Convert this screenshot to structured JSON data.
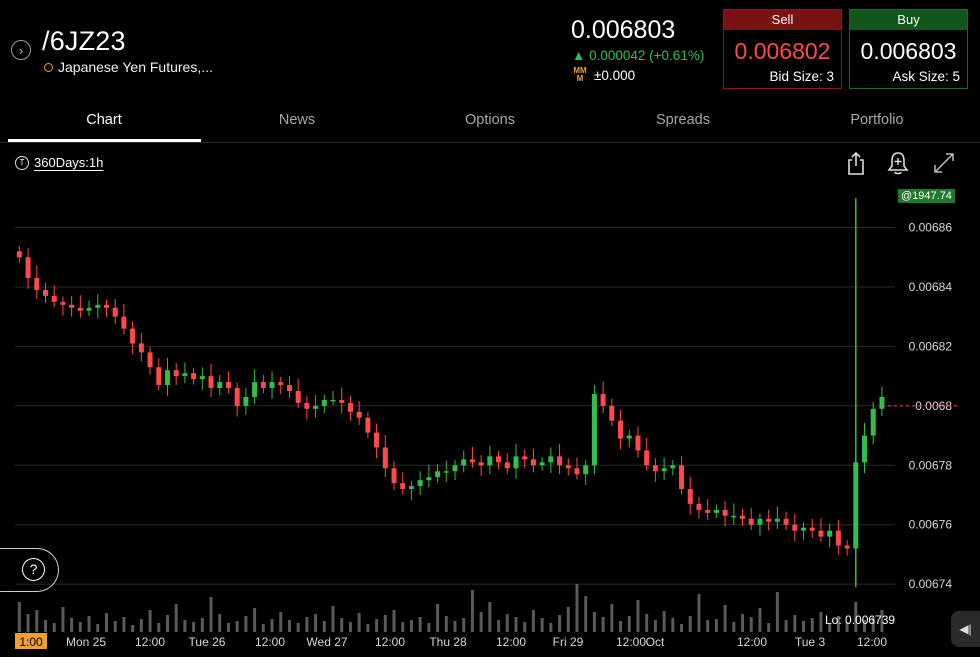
{
  "header": {
    "symbol": "/6JZ23",
    "description": "Japanese Yen Futures,...",
    "last_price": "0.006803",
    "change": "▲ 0.000042 (+0.61%)",
    "mm_value": "±0.000",
    "sell": {
      "label": "Sell",
      "price": "0.006802",
      "size": "Bid Size: 3"
    },
    "buy": {
      "label": "Buy",
      "price": "0.006803",
      "size": "Ask Size: 5"
    }
  },
  "tabs": [
    {
      "label": "Chart"
    },
    {
      "label": "News"
    },
    {
      "label": "Options"
    },
    {
      "label": "Spreads"
    },
    {
      "label": "Portfolio"
    }
  ],
  "toolbar": {
    "range_label": "360Days:1h",
    "icons": [
      "share-icon",
      "alert-bell-icon",
      "expand-icon"
    ]
  },
  "price_tag": "@1947.74",
  "lo_label": "Lo: 0.006739",
  "colors": {
    "up": "#2fbf4a",
    "down": "#ff4a4a",
    "grid": "#2c2c2c",
    "accent": "#f0a030"
  },
  "chart_data": {
    "type": "candlestick",
    "y_ticks": [
      "0.00686",
      "0.00684",
      "0.00682",
      "0.0068",
      "0.00678",
      "0.00676",
      "0.00674"
    ],
    "ylim": [
      0.006734,
      0.006876
    ],
    "x_ticks": [
      "1:00",
      "Mon 25",
      "12:00",
      "Tue 26",
      "12:00",
      "Wed 27",
      "12:00",
      "Thu 28",
      "12:00",
      "Fri 29",
      "12:00",
      "Oct",
      "12:00",
      "Tue 3",
      "12:00"
    ],
    "current_price": 0.0068,
    "close_path": [
      0.00685,
      0.006843,
      0.006839,
      0.006837,
      0.006835,
      0.006834,
      0.006833,
      0.006832,
      0.006833,
      0.006834,
      0.006833,
      0.00683,
      0.006826,
      0.006821,
      0.006818,
      0.006813,
      0.006807,
      0.006812,
      0.00681,
      0.006811,
      0.006809,
      0.00681,
      0.006806,
      0.006808,
      0.006806,
      0.0068,
      0.006803,
      0.006808,
      0.006806,
      0.006808,
      0.006807,
      0.006805,
      0.006801,
      0.006799,
      0.0068,
      0.006802,
      0.006802,
      0.006801,
      0.006798,
      0.006796,
      0.006791,
      0.006786,
      0.006779,
      0.006774,
      0.006772,
      0.006773,
      0.006775,
      0.006776,
      0.006778,
      0.006778,
      0.00678,
      0.006782,
      0.006781,
      0.00678,
      0.006783,
      0.006781,
      0.006779,
      0.006783,
      0.006782,
      0.00678,
      0.006781,
      0.006783,
      0.00678,
      0.006779,
      0.006777,
      0.00678,
      0.006804,
      0.0068,
      0.006795,
      0.006789,
      0.00679,
      0.006785,
      0.00678,
      0.006778,
      0.006779,
      0.00678,
      0.006772,
      0.006767,
      0.006765,
      0.006764,
      0.006765,
      0.006763,
      0.006763,
      0.006762,
      0.00676,
      0.006762,
      0.006761,
      0.006762,
      0.00676,
      0.006758,
      0.006759,
      0.006758,
      0.006756,
      0.006758,
      0.006753,
      0.006752,
      0.006781,
      0.00679,
      0.006799,
      0.006803
    ],
    "volume": [
      30,
      18,
      22,
      12,
      9,
      25,
      14,
      10,
      16,
      8,
      19,
      11,
      15,
      7,
      13,
      22,
      9,
      17,
      28,
      12,
      10,
      14,
      35,
      18,
      9,
      11,
      16,
      24,
      8,
      13,
      20,
      12,
      9,
      15,
      18,
      11,
      26,
      14,
      10,
      19,
      8,
      13,
      17,
      22,
      10,
      12,
      15,
      9,
      28,
      16,
      11,
      14,
      42,
      20,
      30,
      12,
      18,
      15,
      10,
      22,
      14,
      9,
      17,
      25,
      48,
      36,
      20,
      15,
      28,
      11,
      16,
      32,
      18,
      12,
      21,
      14,
      8,
      16,
      38,
      12,
      13,
      27,
      10,
      18,
      15,
      24,
      9,
      40,
      12,
      17,
      11,
      14,
      20,
      8,
      16,
      10,
      30,
      12,
      15,
      22
    ]
  }
}
